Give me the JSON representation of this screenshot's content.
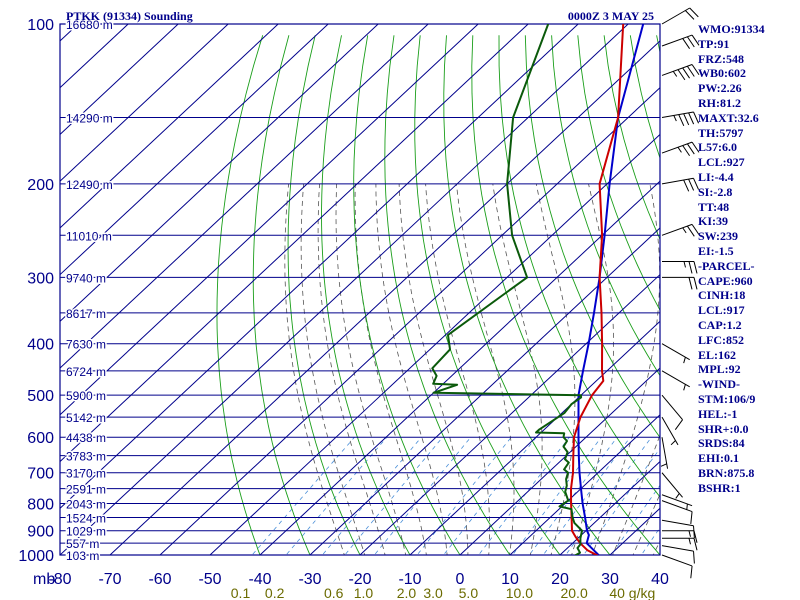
{
  "title": "PTKK (91334) Sounding",
  "time": "0000Z  3 MAY 25",
  "colors": {
    "axes": "#00008b",
    "isotherm": "#00008b",
    "dry_adiabat": "#1a9e1a",
    "moist_adiabat": "#555555",
    "mixing_ratio": "#4a8fd8",
    "temperature": "#cc0000",
    "dewpoint": "#0b5a0b",
    "parcel": "#0000cc",
    "mixing_label": "#6b6b00"
  },
  "chart_data": {
    "type": "line",
    "x_axis": {
      "label": "",
      "units": "°C",
      "range": [
        -80,
        40
      ],
      "tick_labels": [
        "-80",
        "-70",
        "-60",
        "-50",
        "-40",
        "-30",
        "-20",
        "-10",
        "0",
        "10",
        "20",
        "30",
        "40"
      ],
      "corner_label": "mb"
    },
    "y_axis": {
      "label": "",
      "units": "mb",
      "scale": "log",
      "range": [
        1000,
        100
      ],
      "pressure_labels": [
        "100",
        "200",
        "300",
        "400",
        "500",
        "600",
        "700",
        "800",
        "900",
        "1000"
      ]
    },
    "height_levels": [
      {
        "p": 100,
        "label": "16680 m"
      },
      {
        "p": 150,
        "label": "14290 m"
      },
      {
        "p": 200,
        "label": "12490 m"
      },
      {
        "p": 250,
        "label": "11010 m"
      },
      {
        "p": 300,
        "label": "9740 m"
      },
      {
        "p": 350,
        "label": "8617 m"
      },
      {
        "p": 400,
        "label": "7630 m"
      },
      {
        "p": 450,
        "label": "6724 m"
      },
      {
        "p": 500,
        "label": "5900 m"
      },
      {
        "p": 550,
        "label": "5142 m"
      },
      {
        "p": 600,
        "label": "4438 m"
      },
      {
        "p": 650,
        "label": "3783 m"
      },
      {
        "p": 700,
        "label": "3170 m"
      },
      {
        "p": 750,
        "label": "2591 m"
      },
      {
        "p": 800,
        "label": "2043 m"
      },
      {
        "p": 850,
        "label": "1524 m"
      },
      {
        "p": 900,
        "label": "1029 m"
      },
      {
        "p": 950,
        "label": "557 m"
      },
      {
        "p": 1000,
        "label": "103 m"
      }
    ],
    "mixing_ratio_labels": [
      "0.1",
      "0.2",
      "0.6",
      "1.0",
      "2.0",
      "3.0",
      "5.0",
      "10.0",
      "20.0",
      "40 g/kg"
    ],
    "mixing_ratios": [
      0.1,
      0.2,
      0.4,
      0.6,
      1.0,
      2.0,
      3.0,
      5.0,
      8.0,
      10.0,
      12.0,
      16.0,
      20.0,
      28.0,
      40.0
    ],
    "series": [
      {
        "key": "temperature",
        "points": [
          [
            1005,
            28.0
          ],
          [
            980,
            24.5
          ],
          [
            950,
            21.5
          ],
          [
            925,
            19.3
          ],
          [
            900,
            17.2
          ],
          [
            850,
            14.3
          ],
          [
            800,
            11.2
          ],
          [
            750,
            8.0
          ],
          [
            700,
            5.0
          ],
          [
            650,
            1.4
          ],
          [
            600,
            -2.4
          ],
          [
            550,
            -5.4
          ],
          [
            500,
            -7.8
          ],
          [
            470,
            -8.6
          ],
          [
            450,
            -11.0
          ],
          [
            400,
            -16.8
          ],
          [
            350,
            -23.5
          ],
          [
            300,
            -31.5
          ],
          [
            250,
            -40.0
          ],
          [
            200,
            -51.5
          ],
          [
            150,
            -62.0
          ],
          [
            100,
            -81.0
          ]
        ]
      },
      {
        "key": "dewpoint",
        "points": [
          [
            1005,
            23.0
          ],
          [
            990,
            23.5
          ],
          [
            970,
            22.0
          ],
          [
            955,
            21.8
          ],
          [
            930,
            20.5
          ],
          [
            900,
            19.2
          ],
          [
            870,
            16.0
          ],
          [
            850,
            14.5
          ],
          [
            820,
            12.5
          ],
          [
            810,
            9.5
          ],
          [
            790,
            10.0
          ],
          [
            760,
            7.5
          ],
          [
            740,
            6.5
          ],
          [
            720,
            5.0
          ],
          [
            700,
            4.0
          ],
          [
            690,
            2.5
          ],
          [
            670,
            2.0
          ],
          [
            660,
            0.5
          ],
          [
            640,
            -0.5
          ],
          [
            625,
            -2.5
          ],
          [
            610,
            -3.0
          ],
          [
            600,
            -4.5
          ],
          [
            590,
            -5.2
          ],
          [
            588,
            -11.0
          ],
          [
            580,
            -11.0
          ],
          [
            540,
            -9.5
          ],
          [
            520,
            -10.0
          ],
          [
            505,
            -9.5
          ],
          [
            500,
            -10.0
          ],
          [
            495,
            -40.0
          ],
          [
            478,
            -37.0
          ],
          [
            476,
            -42.0
          ],
          [
            460,
            -43.0
          ],
          [
            445,
            -45.5
          ],
          [
            410,
            -46.0
          ],
          [
            385,
            -49.5
          ],
          [
            300,
            -46.0
          ],
          [
            250,
            -58.0
          ],
          [
            200,
            -70.0
          ],
          [
            150,
            -83.0
          ],
          [
            100,
            -96.0
          ]
        ]
      },
      {
        "key": "parcel",
        "points": [
          [
            1005,
            28.2
          ],
          [
            950,
            22.8
          ],
          [
            917,
            21.5
          ],
          [
            900,
            20.2
          ],
          [
            850,
            17.0
          ],
          [
            800,
            13.5
          ],
          [
            750,
            10.0
          ],
          [
            700,
            6.3
          ],
          [
            650,
            2.5
          ],
          [
            600,
            -1.5
          ],
          [
            550,
            -5.8
          ],
          [
            500,
            -10.5
          ],
          [
            450,
            -14.8
          ],
          [
            400,
            -19.5
          ],
          [
            350,
            -25.0
          ],
          [
            300,
            -31.5
          ],
          [
            250,
            -39.5
          ],
          [
            200,
            -49.5
          ],
          [
            150,
            -62.0
          ],
          [
            100,
            -77.0
          ]
        ]
      }
    ],
    "wind_barbs": [
      {
        "p": 1000,
        "dir": 290,
        "kt": 10
      },
      {
        "p": 960,
        "dir": 280,
        "kt": 10
      },
      {
        "p": 930,
        "dir": 270,
        "kt": 15
      },
      {
        "p": 900,
        "dir": 270,
        "kt": 15
      },
      {
        "p": 860,
        "dir": 280,
        "kt": 10
      },
      {
        "p": 790,
        "dir": 290,
        "kt": 10
      },
      {
        "p": 770,
        "dir": 290,
        "kt": 5
      },
      {
        "p": 700,
        "dir": 320,
        "kt": 5
      },
      {
        "p": 600,
        "dir": 350,
        "kt": 5
      },
      {
        "p": 550,
        "dir": 330,
        "kt": 5
      },
      {
        "p": 500,
        "dir": 320,
        "kt": 10
      },
      {
        "p": 450,
        "dir": 300,
        "kt": 5
      },
      {
        "p": 400,
        "dir": 300,
        "kt": 5
      },
      {
        "p": 300,
        "dir": 270,
        "kt": 20
      },
      {
        "p": 280,
        "dir": 270,
        "kt": 25
      },
      {
        "p": 250,
        "dir": 250,
        "kt": 25
      },
      {
        "p": 200,
        "dir": 260,
        "kt": 30
      },
      {
        "p": 175,
        "dir": 250,
        "kt": 35
      },
      {
        "p": 150,
        "dir": 260,
        "kt": 45
      },
      {
        "p": 125,
        "dir": 250,
        "kt": 45
      },
      {
        "p": 110,
        "dir": 250,
        "kt": 30
      },
      {
        "p": 100,
        "dir": 240,
        "kt": 20
      }
    ]
  },
  "indices": [
    "WMO:91334",
    "TP:91",
    "FRZ:548",
    "WB0:602",
    "PW:2.26",
    "RH:81.2",
    "MAXT:32.6",
    "TH:5797",
    "L57:6.0",
    "LCL:927",
    "LI:-4.4",
    "SI:-2.8",
    "TT:48",
    "KI:39",
    "SW:239",
    "EI:-1.5",
    "-PARCEL-",
    "CAPE:960",
    "CINH:18",
    "LCL:917",
    "CAP:1.2",
    "LFC:852",
    "EL:162",
    "MPL:92",
    "-WIND-",
    "STM:106/9",
    "HEL:-1",
    "SHR+:0.0",
    "SRDS:84",
    "EHI:0.1",
    "BRN:875.8",
    "BSHR:1"
  ]
}
